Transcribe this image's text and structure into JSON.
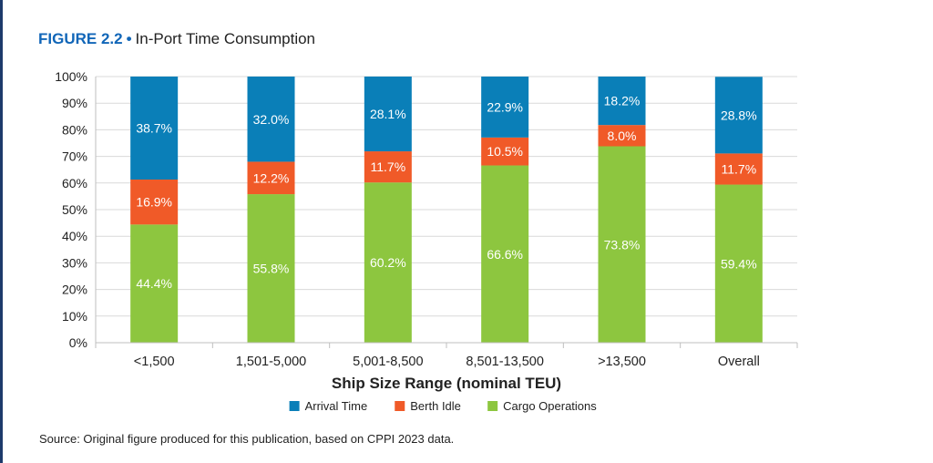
{
  "figure": {
    "label": "FIGURE 2.2",
    "separator": "•",
    "title": "In-Port Time Consumption"
  },
  "chart_data": {
    "type": "bar",
    "stacked": true,
    "categories": [
      "<1,500",
      "1,501-5,000",
      "5,001-8,500",
      "8,501-13,500",
      ">13,500",
      "Overall"
    ],
    "series": [
      {
        "name": "Cargo Operations",
        "color": "#8dc63f",
        "values": [
          44.4,
          55.8,
          60.2,
          66.6,
          73.8,
          59.4
        ]
      },
      {
        "name": "Berth Idle",
        "color": "#f05a28",
        "values": [
          16.9,
          12.2,
          11.7,
          10.5,
          8.0,
          11.7
        ]
      },
      {
        "name": "Arrival Time",
        "color": "#0a7fb8",
        "values": [
          38.7,
          32.0,
          28.1,
          22.9,
          18.2,
          28.8
        ]
      }
    ],
    "legend_order": [
      "Arrival Time",
      "Berth Idle",
      "Cargo Operations"
    ],
    "xlabel": "Ship Size Range (nominal TEU)",
    "ylabel": "",
    "ylim": [
      0,
      100
    ],
    "yticks": [
      0,
      10,
      20,
      30,
      40,
      50,
      60,
      70,
      80,
      90,
      100
    ],
    "ytick_suffix": "%",
    "value_suffix": "%",
    "grid": true,
    "legend_position": "bottom"
  },
  "source": "Source: Original figure produced for this publication, based on CPPI 2023 data."
}
